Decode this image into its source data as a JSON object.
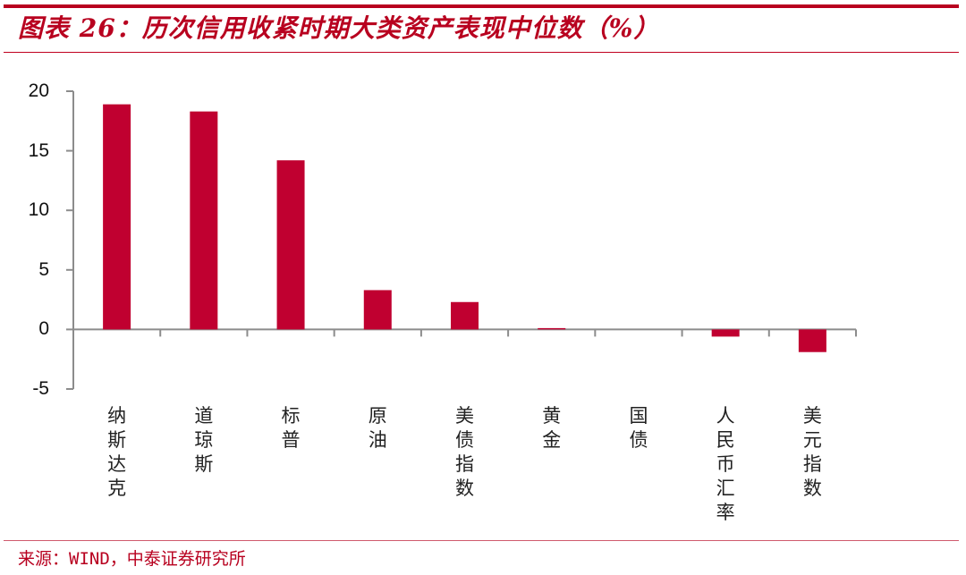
{
  "header": {
    "title": "图表 26：历次信用收紧时期大类资产表现中位数（%）"
  },
  "footer": {
    "source": "来源：WIND，中泰证券研究所"
  },
  "colors": {
    "accent": "#b8001f",
    "bar": "#c00030",
    "axis": "#8c8c8c"
  },
  "chart_data": {
    "type": "bar",
    "title": "历次信用收紧时期大类资产表现中位数（%）",
    "xlabel": "",
    "ylabel": "",
    "ylim": [
      -5,
      20
    ],
    "yticks": [
      20,
      15,
      10,
      5,
      0,
      -5
    ],
    "grid": false,
    "legend": null,
    "categories": [
      "纳斯达克",
      "道琼斯",
      "标普",
      "原油",
      "美债指数",
      "黄金",
      "国债",
      "人民币汇率",
      "美元指数"
    ],
    "values": [
      18.9,
      18.3,
      14.2,
      3.3,
      2.3,
      0.1,
      0.0,
      -0.6,
      -1.9
    ]
  }
}
